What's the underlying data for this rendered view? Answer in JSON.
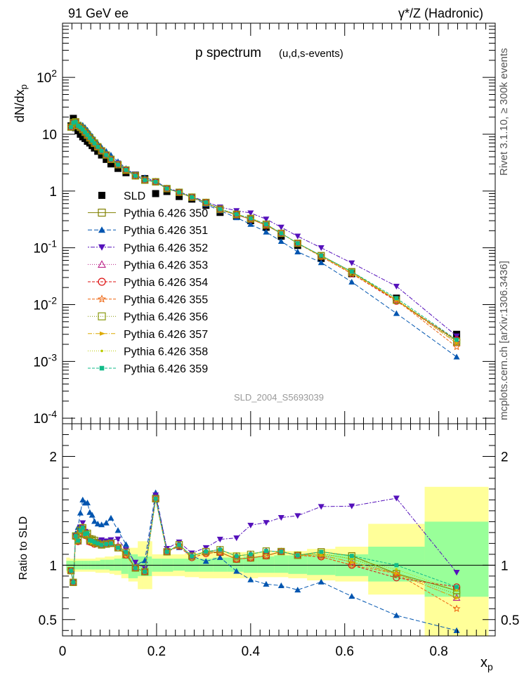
{
  "header": {
    "left": "91 GeV ee",
    "right": "γ*/Z (Hadronic)"
  },
  "side_labels": {
    "top": "Rivet 3.1.10, ≥ 300k events",
    "bottom": "mcplots.cern.ch [arXiv:1306.3436]"
  },
  "watermark": "SLD_2004_S5693039",
  "chart_data": [
    {
      "type": "scatter",
      "title": "p spectrum",
      "subtitle": "(u,d,s-events)",
      "ylabel": "dN/dx_p",
      "y_scale": "log",
      "ylim": [
        8e-05,
        900
      ],
      "xlim": [
        0,
        0.92
      ],
      "y_tick_labels": [
        "10^-4",
        "10^-3",
        "10^-2",
        "10^-1",
        "1",
        "10",
        "10^2"
      ],
      "legend_position": "left-middle",
      "x": [
        0.018,
        0.023,
        0.028,
        0.033,
        0.038,
        0.043,
        0.048,
        0.053,
        0.058,
        0.063,
        0.068,
        0.075,
        0.083,
        0.093,
        0.103,
        0.118,
        0.135,
        0.155,
        0.175,
        0.198,
        0.222,
        0.248,
        0.275,
        0.305,
        0.335,
        0.37,
        0.4,
        0.433,
        0.465,
        0.5,
        0.55,
        0.615,
        0.71,
        0.838
      ],
      "series": [
        {
          "name": "SLD",
          "color": "#000000",
          "marker": "square-filled",
          "dash": "none",
          "values": [
            14,
            19,
            13,
            11.5,
            10,
            9,
            8.4,
            7.5,
            7.0,
            6.3,
            5.7,
            5.0,
            4.3,
            3.6,
            3.0,
            2.5,
            2.1,
            1.9,
            1.65,
            0.9,
            0.98,
            0.8,
            0.72,
            0.56,
            0.42,
            0.36,
            0.3,
            0.23,
            0.16,
            0.11,
            0.065,
            0.035,
            0.013,
            0.003
          ]
        },
        {
          "name": "Pythia 6.426 350",
          "color": "#808000",
          "marker": "square-open",
          "dash": "solid",
          "values": [
            13.3,
            16,
            16.5,
            14.2,
            13.2,
            12.0,
            10.8,
            9.7,
            8.7,
            7.8,
            7.0,
            6.0,
            5.1,
            4.3,
            3.6,
            2.9,
            2.3,
            1.85,
            1.55,
            1.45,
            1.1,
            0.95,
            0.78,
            0.63,
            0.47,
            0.38,
            0.32,
            0.25,
            0.18,
            0.12,
            0.073,
            0.038,
            0.012,
            0.0023
          ]
        },
        {
          "name": "Pythia 6.426 351",
          "color": "#0055b0",
          "marker": "triangle-up-filled",
          "dash": "6,3",
          "values": [
            13.3,
            16.2,
            16.8,
            15.5,
            14.8,
            14.4,
            13.2,
            11.8,
            10.4,
            9.2,
            8.0,
            6.9,
            5.9,
            5.0,
            4.3,
            3.3,
            2.5,
            1.9,
            1.72,
            1.5,
            1.12,
            0.93,
            0.78,
            0.58,
            0.45,
            0.34,
            0.26,
            0.19,
            0.13,
            0.085,
            0.055,
            0.025,
            0.007,
            0.0012
          ]
        },
        {
          "name": "Pythia 6.426 352",
          "color": "#5511bb",
          "marker": "triangle-down-filled",
          "dash": "2,2,6,2",
          "values": [
            13.3,
            16,
            16.5,
            14.0,
            13.5,
            12.5,
            11.0,
            9.5,
            8.5,
            7.6,
            6.9,
            6.1,
            5.3,
            4.4,
            3.7,
            3.1,
            2.4,
            1.95,
            1.6,
            1.48,
            1.13,
            0.97,
            0.8,
            0.65,
            0.52,
            0.45,
            0.41,
            0.32,
            0.23,
            0.16,
            0.1,
            0.054,
            0.021,
            0.0028
          ]
        },
        {
          "name": "Pythia 6.426 353",
          "color": "#bb2288",
          "marker": "triangle-up-open",
          "dash": "1,2",
          "values": [
            13.3,
            16,
            16.5,
            14.0,
            13.2,
            12.2,
            10.8,
            9.6,
            8.5,
            7.7,
            6.9,
            6.0,
            5.1,
            4.3,
            3.6,
            2.95,
            2.35,
            1.85,
            1.55,
            1.45,
            1.1,
            0.95,
            0.78,
            0.63,
            0.48,
            0.39,
            0.33,
            0.26,
            0.18,
            0.12,
            0.071,
            0.036,
            0.012,
            0.0021
          ]
        },
        {
          "name": "Pythia 6.426 354",
          "color": "#dd1111",
          "marker": "circle-open",
          "dash": "4,2",
          "values": [
            13.3,
            16,
            16.4,
            14.0,
            13.0,
            12.0,
            10.7,
            9.5,
            8.5,
            7.6,
            6.8,
            6.0,
            5.1,
            4.3,
            3.6,
            2.9,
            2.3,
            1.85,
            1.55,
            1.45,
            1.1,
            0.94,
            0.77,
            0.62,
            0.47,
            0.38,
            0.32,
            0.25,
            0.18,
            0.12,
            0.07,
            0.035,
            0.0115,
            0.0024
          ]
        },
        {
          "name": "Pythia 6.426 355",
          "color": "#ee6611",
          "marker": "star-open",
          "dash": "4,2",
          "values": [
            13.3,
            16,
            16.4,
            14.0,
            13.0,
            12.0,
            10.7,
            9.5,
            8.5,
            7.6,
            6.8,
            6.0,
            5.1,
            4.3,
            3.6,
            2.9,
            2.3,
            1.85,
            1.55,
            1.45,
            1.1,
            0.94,
            0.77,
            0.62,
            0.47,
            0.38,
            0.32,
            0.25,
            0.18,
            0.12,
            0.07,
            0.035,
            0.012,
            0.0018
          ]
        },
        {
          "name": "Pythia 6.426 356",
          "color": "#88990c",
          "marker": "square-open",
          "dash": "1,2",
          "values": [
            13.3,
            16,
            16.5,
            14.1,
            13.2,
            12.1,
            10.8,
            9.6,
            8.6,
            7.7,
            6.9,
            6.0,
            5.1,
            4.3,
            3.6,
            2.9,
            2.35,
            1.85,
            1.55,
            1.45,
            1.1,
            0.95,
            0.78,
            0.63,
            0.48,
            0.39,
            0.33,
            0.26,
            0.18,
            0.12,
            0.072,
            0.037,
            0.012,
            0.0022
          ]
        },
        {
          "name": "Pythia 6.426 357",
          "color": "#ddaa00",
          "marker": "triangle-right-filled",
          "dash": "6,2,1,2",
          "values": [
            13.3,
            16,
            16.5,
            14.0,
            13.1,
            12.0,
            10.8,
            9.6,
            8.5,
            7.6,
            6.9,
            6.0,
            5.1,
            4.3,
            3.6,
            2.9,
            2.35,
            1.85,
            1.55,
            1.45,
            1.1,
            0.95,
            0.78,
            0.63,
            0.48,
            0.39,
            0.33,
            0.26,
            0.18,
            0.12,
            0.071,
            0.036,
            0.012,
            0.0021
          ]
        },
        {
          "name": "Pythia 6.426 358",
          "color": "#bbcc00",
          "marker": "dot",
          "dash": "1,2",
          "values": [
            13.3,
            16,
            16.5,
            14.0,
            13.1,
            12.0,
            10.8,
            9.6,
            8.5,
            7.6,
            6.9,
            6.0,
            5.1,
            4.3,
            3.6,
            2.9,
            2.35,
            1.85,
            1.55,
            1.45,
            1.1,
            0.95,
            0.78,
            0.63,
            0.48,
            0.39,
            0.33,
            0.26,
            0.18,
            0.12,
            0.072,
            0.037,
            0.0125,
            0.0023
          ]
        },
        {
          "name": "Pythia 6.426 359",
          "color": "#11bb88",
          "marker": "square-filled-small",
          "dash": "4,2",
          "values": [
            13.3,
            16,
            16.5,
            14.1,
            13.2,
            12.1,
            10.8,
            9.7,
            8.6,
            7.7,
            6.9,
            6.0,
            5.1,
            4.3,
            3.6,
            2.9,
            2.35,
            1.85,
            1.55,
            1.45,
            1.1,
            0.95,
            0.78,
            0.63,
            0.48,
            0.39,
            0.33,
            0.26,
            0.18,
            0.12,
            0.073,
            0.038,
            0.013,
            0.0024
          ]
        }
      ]
    },
    {
      "type": "scatter",
      "ylabel": "Ratio to SLD",
      "xlabel": "x_p",
      "ylim": [
        0.35,
        2.3
      ],
      "xlim": [
        0,
        0.92
      ],
      "x_ticks": [
        0,
        0.2,
        0.4,
        0.6,
        0.8
      ],
      "x_tick_labels": [
        "0",
        "0.2",
        "0.4",
        "0.6",
        "0.8"
      ],
      "y_ticks": [
        0.5,
        1,
        2
      ],
      "y_tick_labels": [
        "0.5",
        "1",
        "2"
      ],
      "reference_line": 1,
      "uncertainty_bands": {
        "edges": [
          0.008,
          0.015,
          0.02,
          0.025,
          0.03,
          0.035,
          0.04,
          0.045,
          0.05,
          0.055,
          0.06,
          0.065,
          0.07,
          0.08,
          0.09,
          0.1,
          0.11,
          0.125,
          0.14,
          0.16,
          0.17,
          0.19,
          0.21,
          0.235,
          0.26,
          0.29,
          0.32,
          0.35,
          0.385,
          0.415,
          0.45,
          0.48,
          0.52,
          0.58,
          0.65,
          0.77,
          0.905
        ],
        "stat_low": [
          0.95,
          0.96,
          0.96,
          0.96,
          0.96,
          0.96,
          0.96,
          0.96,
          0.96,
          0.96,
          0.96,
          0.96,
          0.96,
          0.96,
          0.96,
          0.95,
          0.95,
          0.92,
          0.88,
          0.9,
          0.9,
          0.94,
          0.94,
          0.95,
          0.94,
          0.94,
          0.94,
          0.94,
          0.93,
          0.93,
          0.93,
          0.92,
          0.91,
          0.9,
          0.85,
          0.71
        ],
        "stat_high": [
          1.04,
          1.04,
          1.04,
          1.04,
          1.04,
          1.04,
          1.04,
          1.04,
          1.04,
          1.04,
          1.04,
          1.04,
          1.04,
          1.05,
          1.05,
          1.05,
          1.06,
          1.07,
          1.1,
          1.08,
          1.08,
          1.06,
          1.06,
          1.06,
          1.06,
          1.06,
          1.07,
          1.07,
          1.08,
          1.08,
          1.09,
          1.09,
          1.1,
          1.1,
          1.17,
          1.4
        ],
        "total_low": [
          0.93,
          0.94,
          0.94,
          0.94,
          0.94,
          0.94,
          0.94,
          0.94,
          0.94,
          0.94,
          0.94,
          0.94,
          0.93,
          0.93,
          0.93,
          0.92,
          0.91,
          0.88,
          0.85,
          0.78,
          0.78,
          0.9,
          0.9,
          0.9,
          0.89,
          0.88,
          0.88,
          0.88,
          0.88,
          0.89,
          0.89,
          0.88,
          0.86,
          0.85,
          0.73,
          0.32
        ],
        "total_high": [
          1.07,
          1.06,
          1.06,
          1.06,
          1.06,
          1.06,
          1.06,
          1.06,
          1.06,
          1.06,
          1.06,
          1.06,
          1.07,
          1.07,
          1.08,
          1.08,
          1.09,
          1.13,
          1.16,
          1.22,
          1.22,
          1.1,
          1.1,
          1.1,
          1.11,
          1.12,
          1.12,
          1.12,
          1.12,
          1.12,
          1.13,
          1.13,
          1.15,
          1.17,
          1.38,
          1.72
        ],
        "stat_color": "#99ff99",
        "total_color": "#ffff99"
      }
    }
  ]
}
